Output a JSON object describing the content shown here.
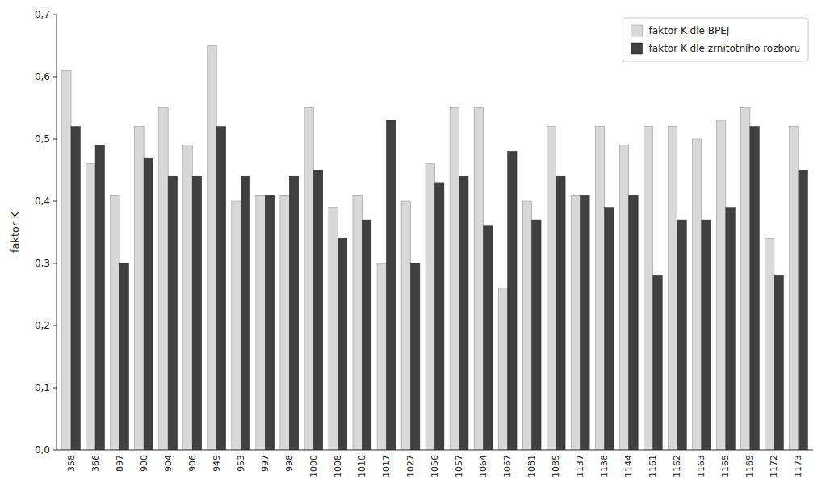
{
  "chart_data": {
    "type": "bar",
    "y_label": "faktor K",
    "categories": [
      "358",
      "366",
      "897",
      "900",
      "904",
      "906",
      "949",
      "953",
      "997",
      "998",
      "1000",
      "1008",
      "1010",
      "1017",
      "1027",
      "1056",
      "1057",
      "1064",
      "1067",
      "1081",
      "1085",
      "1137",
      "1138",
      "1144",
      "1161",
      "1162",
      "1163",
      "1165",
      "1169",
      "1172",
      "1173"
    ],
    "series": [
      {
        "name": "faktor K dle BPEJ",
        "color": "#d8d8d8",
        "values": [
          0.61,
          0.46,
          0.41,
          0.52,
          0.55,
          0.49,
          0.65,
          0.4,
          0.41,
          0.41,
          0.55,
          0.39,
          0.41,
          0.3,
          0.4,
          0.46,
          0.55,
          0.55,
          0.26,
          0.4,
          0.52,
          0.41,
          0.52,
          0.49,
          0.52,
          0.52,
          0.5,
          0.53,
          0.55,
          0.34,
          0.52
        ]
      },
      {
        "name": "faktor K dle zrnitotního rozboru",
        "color": "#404040",
        "values": [
          0.52,
          0.49,
          0.3,
          0.47,
          0.44,
          0.44,
          0.52,
          0.44,
          0.41,
          0.44,
          0.45,
          0.34,
          0.37,
          0.53,
          0.3,
          0.43,
          0.44,
          0.36,
          0.48,
          0.37,
          0.44,
          0.41,
          0.39,
          0.41,
          0.28,
          0.37,
          0.37,
          0.39,
          0.52,
          0.28,
          0.45
        ]
      }
    ],
    "ylim": [
      0,
      0.7
    ],
    "yticks": [
      {
        "value": 0.0,
        "label": "0,0"
      },
      {
        "value": 0.1,
        "label": "0,1"
      },
      {
        "value": 0.2,
        "label": "0,2"
      },
      {
        "value": 0.3,
        "label": "0,3"
      },
      {
        "value": 0.4,
        "label": "0,4"
      },
      {
        "value": 0.5,
        "label": "0,5"
      },
      {
        "value": 0.6,
        "label": "0,6"
      },
      {
        "value": 0.7,
        "label": "0,7"
      }
    ],
    "grid": false,
    "legend": "upper right"
  }
}
